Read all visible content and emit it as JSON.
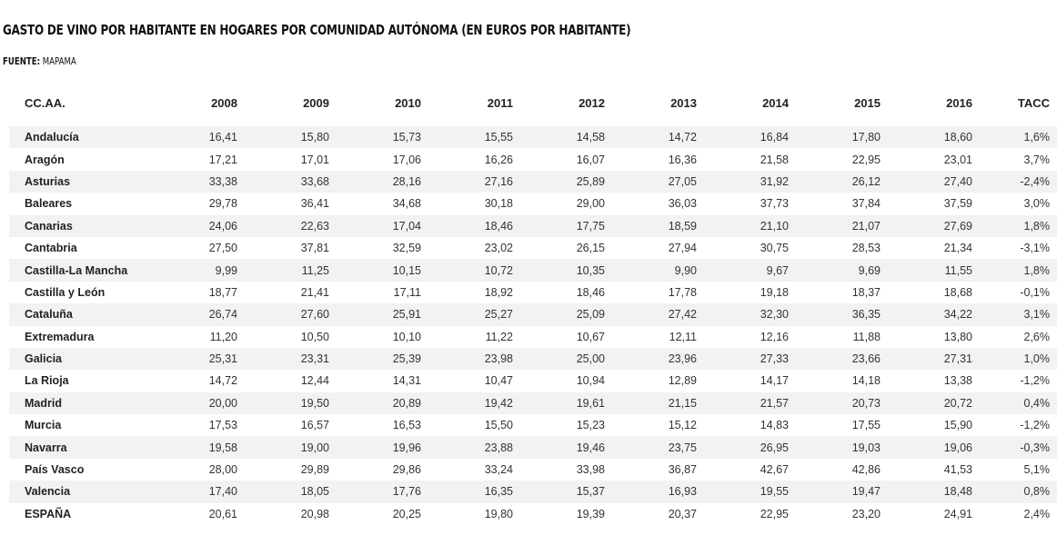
{
  "title": "GASTO DE VINO POR HABITANTE EN HOGARES POR COMUNIDAD AUTÓNOMA (EN EUROS POR HABITANTE)",
  "source": {
    "label": "FUENTE:",
    "value": "MAPAMA"
  },
  "table": {
    "headers": [
      "CC.AA.",
      "2008",
      "2009",
      "2010",
      "2011",
      "2012",
      "2013",
      "2014",
      "2015",
      "2016",
      "TACC"
    ],
    "rows": [
      {
        "name": "Andalucía",
        "values": [
          "16,41",
          "15,80",
          "15,73",
          "15,55",
          "14,58",
          "14,72",
          "16,84",
          "17,80",
          "18,60"
        ],
        "tacc": "1,6%"
      },
      {
        "name": "Aragón",
        "values": [
          "17,21",
          "17,01",
          "17,06",
          "16,26",
          "16,07",
          "16,36",
          "21,58",
          "22,95",
          "23,01"
        ],
        "tacc": "3,7%"
      },
      {
        "name": "Asturias",
        "values": [
          "33,38",
          "33,68",
          "28,16",
          "27,16",
          "25,89",
          "27,05",
          "31,92",
          "26,12",
          "27,40"
        ],
        "tacc": "-2,4%"
      },
      {
        "name": "Baleares",
        "values": [
          "29,78",
          "36,41",
          "34,68",
          "30,18",
          "29,00",
          "36,03",
          "37,73",
          "37,84",
          "37,59"
        ],
        "tacc": "3,0%"
      },
      {
        "name": "Canarias",
        "values": [
          "24,06",
          "22,63",
          "17,04",
          "18,46",
          "17,75",
          "18,59",
          "21,10",
          "21,07",
          "27,69"
        ],
        "tacc": "1,8%"
      },
      {
        "name": "Cantabria",
        "values": [
          "27,50",
          "37,81",
          "32,59",
          "23,02",
          "26,15",
          "27,94",
          "30,75",
          "28,53",
          "21,34"
        ],
        "tacc": "-3,1%"
      },
      {
        "name": "Castilla-La Mancha",
        "values": [
          "9,99",
          "11,25",
          "10,15",
          "10,72",
          "10,35",
          "9,90",
          "9,67",
          "9,69",
          "11,55"
        ],
        "tacc": "1,8%"
      },
      {
        "name": "Castilla y León",
        "values": [
          "18,77",
          "21,41",
          "17,11",
          "18,92",
          "18,46",
          "17,78",
          "19,18",
          "18,37",
          "18,68"
        ],
        "tacc": "-0,1%"
      },
      {
        "name": "Cataluña",
        "values": [
          "26,74",
          "27,60",
          "25,91",
          "25,27",
          "25,09",
          "27,42",
          "32,30",
          "36,35",
          "34,22"
        ],
        "tacc": "3,1%"
      },
      {
        "name": "Extremadura",
        "values": [
          "11,20",
          "10,50",
          "10,10",
          "11,22",
          "10,67",
          "12,11",
          "12,16",
          "11,88",
          "13,80"
        ],
        "tacc": "2,6%"
      },
      {
        "name": "Galicia",
        "values": [
          "25,31",
          "23,31",
          "25,39",
          "23,98",
          "25,00",
          "23,96",
          "27,33",
          "23,66",
          "27,31"
        ],
        "tacc": "1,0%"
      },
      {
        "name": "La Rioja",
        "values": [
          "14,72",
          "12,44",
          "14,31",
          "10,47",
          "10,94",
          "12,89",
          "14,17",
          "14,18",
          "13,38"
        ],
        "tacc": "-1,2%"
      },
      {
        "name": "Madrid",
        "values": [
          "20,00",
          "19,50",
          "20,89",
          "19,42",
          "19,61",
          "21,15",
          "21,57",
          "20,73",
          "20,72"
        ],
        "tacc": "0,4%"
      },
      {
        "name": "Murcia",
        "values": [
          "17,53",
          "16,57",
          "16,53",
          "15,50",
          "15,23",
          "15,12",
          "14,83",
          "17,55",
          "15,90"
        ],
        "tacc": "-1,2%"
      },
      {
        "name": "Navarra",
        "values": [
          "19,58",
          "19,00",
          "19,96",
          "23,88",
          "19,46",
          "23,75",
          "26,95",
          "19,03",
          "19,06"
        ],
        "tacc": "-0,3%"
      },
      {
        "name": "País Vasco",
        "values": [
          "28,00",
          "29,89",
          "29,86",
          "33,24",
          "33,98",
          "36,87",
          "42,67",
          "42,86",
          "41,53"
        ],
        "tacc": "5,1%"
      },
      {
        "name": "Valencia",
        "values": [
          "17,40",
          "18,05",
          "17,76",
          "16,35",
          "15,37",
          "16,93",
          "19,55",
          "19,47",
          "18,48"
        ],
        "tacc": "0,8%"
      },
      {
        "name": "ESPAÑA",
        "values": [
          "20,61",
          "20,98",
          "20,25",
          "19,80",
          "19,39",
          "20,37",
          "22,95",
          "23,20",
          "24,91"
        ],
        "tacc": "2,4%"
      }
    ]
  },
  "colors": {
    "shaded_row": "#f2f2f2",
    "text": "#222222"
  }
}
